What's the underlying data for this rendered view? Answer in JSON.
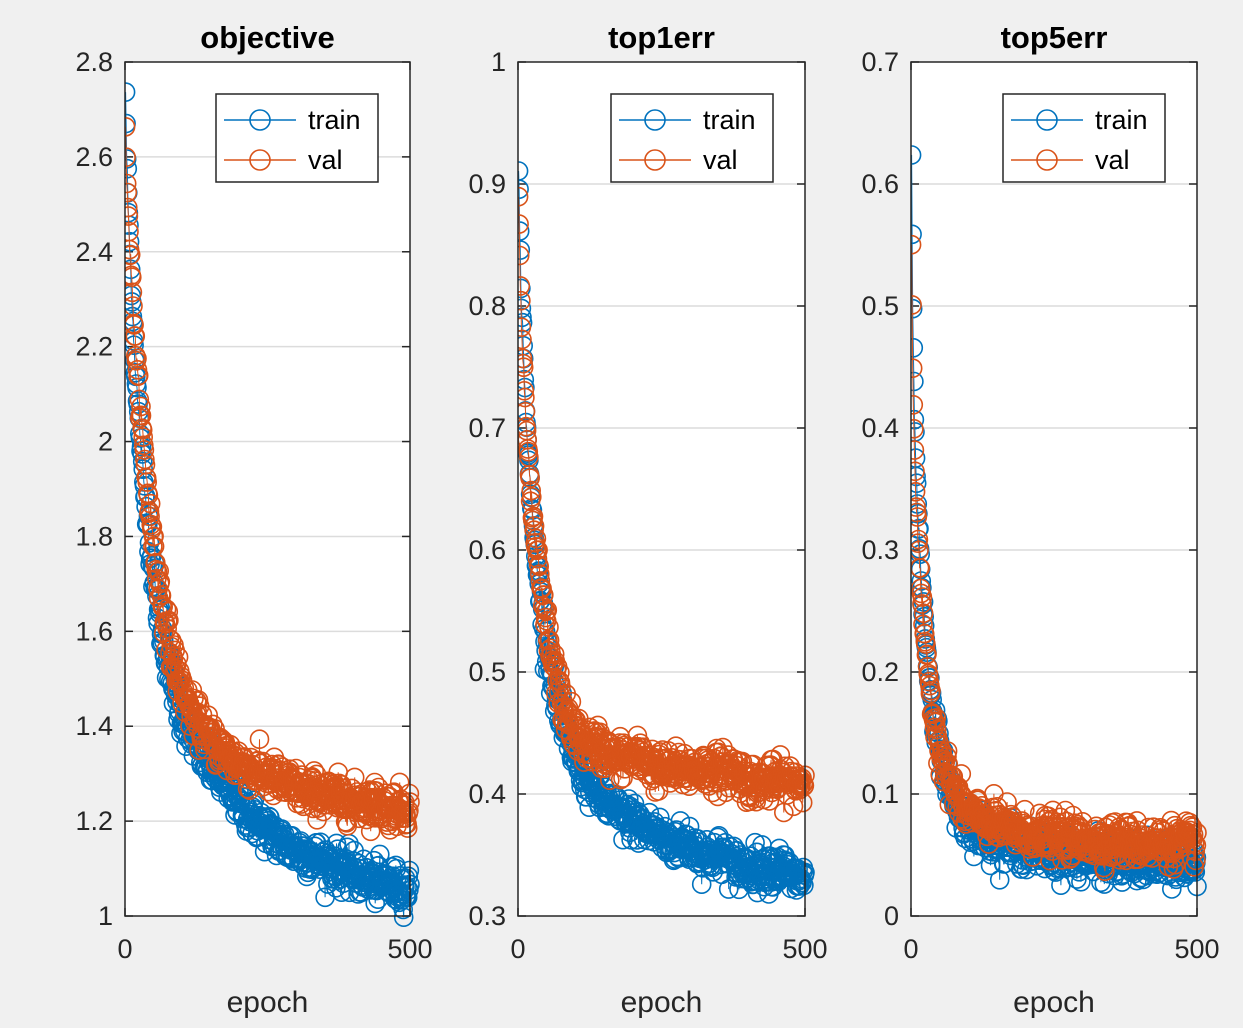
{
  "colors": {
    "train": "#0072BD",
    "val": "#D95319",
    "background": "#f0f0f0",
    "axes_bg": "#ffffff",
    "grid": "#dcdcdc",
    "axis": "#262626"
  },
  "chart_data": [
    {
      "type": "scatter",
      "title": "objective",
      "xlabel": "epoch",
      "ylabel": "",
      "xlim": [
        0,
        500
      ],
      "ylim": [
        1,
        2.8
      ],
      "xticks": [
        0,
        500
      ],
      "xtick_labels": [
        "0",
        "500"
      ],
      "yticks": [
        1,
        1.2,
        1.4,
        1.6,
        1.8,
        2,
        2.2,
        2.4,
        2.6,
        2.8
      ],
      "ytick_labels": [
        "1",
        "1.2",
        "1.4",
        "1.6",
        "1.8",
        "2",
        "2.2",
        "2.4",
        "2.6",
        "2.8"
      ],
      "grid": "y",
      "legend": "top-right",
      "series": [
        {
          "name": "train",
          "x": [
            1,
            2,
            3,
            5,
            8,
            12,
            16,
            20,
            25,
            30,
            35,
            40,
            45,
            50,
            55,
            60,
            70,
            80,
            90,
            100,
            120,
            140,
            160,
            180,
            200,
            220,
            240,
            260,
            280,
            300,
            320,
            340,
            360,
            380,
            400,
            420,
            440,
            460,
            480,
            500
          ],
          "y": [
            2.74,
            2.66,
            2.6,
            2.52,
            2.42,
            2.3,
            2.2,
            2.12,
            2.04,
            1.96,
            1.89,
            1.83,
            1.77,
            1.72,
            1.67,
            1.63,
            1.56,
            1.51,
            1.46,
            1.42,
            1.37,
            1.33,
            1.3,
            1.27,
            1.24,
            1.21,
            1.19,
            1.17,
            1.15,
            1.14,
            1.13,
            1.12,
            1.11,
            1.1,
            1.09,
            1.08,
            1.07,
            1.07,
            1.06,
            1.06
          ]
        },
        {
          "name": "val",
          "x": [
            1,
            2,
            3,
            5,
            8,
            12,
            16,
            20,
            25,
            30,
            35,
            40,
            45,
            50,
            55,
            60,
            70,
            80,
            90,
            100,
            120,
            140,
            160,
            180,
            200,
            220,
            240,
            260,
            280,
            300,
            320,
            340,
            360,
            380,
            400,
            420,
            440,
            460,
            480,
            500
          ],
          "y": [
            2.66,
            2.61,
            2.56,
            2.5,
            2.42,
            2.33,
            2.25,
            2.17,
            2.1,
            2.03,
            1.96,
            1.9,
            1.84,
            1.79,
            1.74,
            1.7,
            1.63,
            1.57,
            1.52,
            1.48,
            1.42,
            1.39,
            1.36,
            1.34,
            1.32,
            1.31,
            1.3,
            1.29,
            1.28,
            1.27,
            1.26,
            1.26,
            1.25,
            1.25,
            1.24,
            1.24,
            1.24,
            1.23,
            1.23,
            1.23
          ]
        }
      ]
    },
    {
      "type": "scatter",
      "title": "top1err",
      "xlabel": "epoch",
      "ylabel": "",
      "xlim": [
        0,
        500
      ],
      "ylim": [
        0.3,
        1
      ],
      "xticks": [
        0,
        500
      ],
      "xtick_labels": [
        "0",
        "500"
      ],
      "yticks": [
        0.3,
        0.4,
        0.5,
        0.6,
        0.7,
        0.8,
        0.9,
        1
      ],
      "ytick_labels": [
        "0.3",
        "0.4",
        "0.5",
        "0.6",
        "0.7",
        "0.8",
        "0.9",
        "1"
      ],
      "grid": "y",
      "legend": "top-right",
      "series": [
        {
          "name": "train",
          "x": [
            1,
            2,
            3,
            5,
            8,
            12,
            16,
            20,
            25,
            30,
            35,
            40,
            45,
            50,
            55,
            60,
            70,
            80,
            90,
            100,
            120,
            140,
            160,
            180,
            200,
            220,
            240,
            260,
            280,
            300,
            320,
            340,
            360,
            380,
            400,
            420,
            440,
            460,
            480,
            500
          ],
          "y": [
            0.91,
            0.89,
            0.86,
            0.82,
            0.78,
            0.73,
            0.69,
            0.66,
            0.63,
            0.6,
            0.58,
            0.56,
            0.54,
            0.52,
            0.51,
            0.49,
            0.47,
            0.45,
            0.44,
            0.43,
            0.41,
            0.4,
            0.39,
            0.38,
            0.38,
            0.37,
            0.37,
            0.36,
            0.36,
            0.36,
            0.35,
            0.35,
            0.35,
            0.34,
            0.34,
            0.34,
            0.34,
            0.34,
            0.33,
            0.33
          ]
        },
        {
          "name": "val",
          "x": [
            1,
            2,
            3,
            5,
            8,
            12,
            16,
            20,
            25,
            30,
            35,
            40,
            45,
            50,
            55,
            60,
            70,
            80,
            90,
            100,
            120,
            140,
            160,
            180,
            200,
            220,
            240,
            260,
            280,
            300,
            320,
            340,
            360,
            380,
            400,
            420,
            440,
            460,
            480,
            500
          ],
          "y": [
            0.89,
            0.87,
            0.84,
            0.8,
            0.76,
            0.72,
            0.69,
            0.66,
            0.63,
            0.61,
            0.59,
            0.57,
            0.55,
            0.54,
            0.52,
            0.51,
            0.49,
            0.47,
            0.46,
            0.45,
            0.44,
            0.44,
            0.43,
            0.43,
            0.43,
            0.43,
            0.42,
            0.42,
            0.42,
            0.42,
            0.42,
            0.42,
            0.42,
            0.42,
            0.41,
            0.41,
            0.41,
            0.41,
            0.41,
            0.41
          ]
        }
      ]
    },
    {
      "type": "scatter",
      "title": "top5err",
      "xlabel": "epoch",
      "ylabel": "",
      "xlim": [
        0,
        500
      ],
      "ylim": [
        0,
        0.7
      ],
      "xticks": [
        0,
        500
      ],
      "xtick_labels": [
        "0",
        "500"
      ],
      "yticks": [
        0,
        0.1,
        0.2,
        0.3,
        0.4,
        0.5,
        0.6,
        0.7
      ],
      "ytick_labels": [
        "0",
        "0.1",
        "0.2",
        "0.3",
        "0.4",
        "0.5",
        "0.6",
        "0.7"
      ],
      "grid": "y",
      "legend": "top-right",
      "series": [
        {
          "name": "train",
          "x": [
            1,
            2,
            3,
            5,
            8,
            12,
            16,
            20,
            25,
            30,
            35,
            40,
            45,
            50,
            55,
            60,
            70,
            80,
            90,
            100,
            120,
            140,
            160,
            180,
            200,
            220,
            240,
            260,
            280,
            300,
            320,
            340,
            360,
            380,
            400,
            420,
            440,
            460,
            480,
            500
          ],
          "y": [
            0.62,
            0.56,
            0.5,
            0.44,
            0.38,
            0.33,
            0.29,
            0.26,
            0.23,
            0.2,
            0.18,
            0.16,
            0.15,
            0.14,
            0.13,
            0.12,
            0.1,
            0.09,
            0.08,
            0.075,
            0.07,
            0.065,
            0.06,
            0.058,
            0.056,
            0.054,
            0.052,
            0.05,
            0.049,
            0.048,
            0.047,
            0.046,
            0.045,
            0.044,
            0.044,
            0.043,
            0.043,
            0.042,
            0.042,
            0.045
          ]
        },
        {
          "name": "val",
          "x": [
            1,
            2,
            3,
            5,
            8,
            12,
            16,
            20,
            25,
            30,
            35,
            40,
            45,
            50,
            55,
            60,
            70,
            80,
            90,
            100,
            120,
            140,
            160,
            180,
            200,
            220,
            240,
            260,
            280,
            300,
            320,
            340,
            360,
            380,
            400,
            420,
            440,
            460,
            480,
            500
          ],
          "y": [
            0.55,
            0.5,
            0.45,
            0.4,
            0.35,
            0.31,
            0.28,
            0.25,
            0.22,
            0.2,
            0.18,
            0.16,
            0.15,
            0.14,
            0.13,
            0.12,
            0.11,
            0.1,
            0.09,
            0.085,
            0.08,
            0.076,
            0.073,
            0.07,
            0.068,
            0.067,
            0.066,
            0.065,
            0.064,
            0.063,
            0.062,
            0.062,
            0.061,
            0.061,
            0.06,
            0.06,
            0.06,
            0.06,
            0.06,
            0.06
          ]
        }
      ]
    }
  ]
}
